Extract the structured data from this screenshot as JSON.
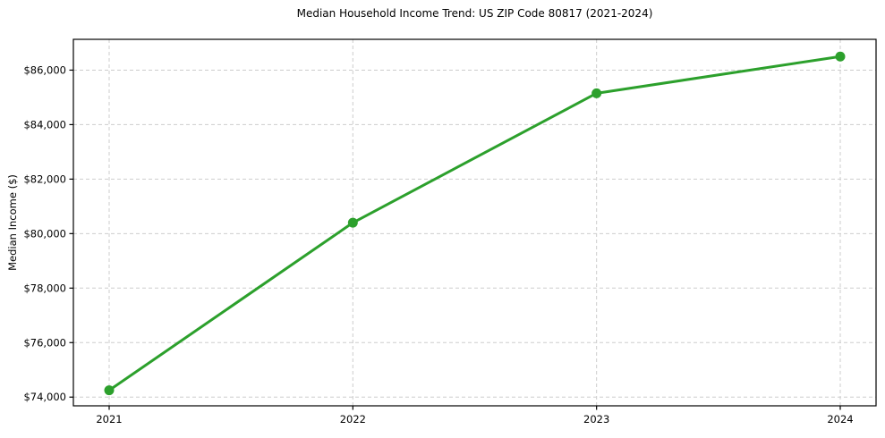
{
  "figure": {
    "title": "Median Household Income Trend: US ZIP Code 80817 (2021-2024)",
    "y_axis_label": "Median Income ($)"
  },
  "chart_data": {
    "type": "line",
    "title": "Median Household Income Trend: US ZIP Code 80817 (2021-2024)",
    "xlabel": "",
    "ylabel": "Median Income ($)",
    "categories": [
      "2021",
      "2022",
      "2023",
      "2024"
    ],
    "values": [
      74250,
      80400,
      85150,
      86500
    ],
    "y_ticks": [
      74000,
      76000,
      78000,
      80000,
      82000,
      84000,
      86000
    ],
    "y_tick_labels": [
      "$74,000",
      "$76,000",
      "$78,000",
      "$80,000",
      "$82,000",
      "$84,000",
      "$86,000"
    ],
    "ylim": [
      73680,
      87130
    ],
    "grid": true,
    "grid_style": "dashed",
    "legend": false,
    "marker": "circle",
    "line_color": "#2ca02c",
    "grid_color": "#cdcdcd",
    "axis_color": "#000000",
    "text_color": "#000000",
    "background_color": "#ffffff"
  }
}
